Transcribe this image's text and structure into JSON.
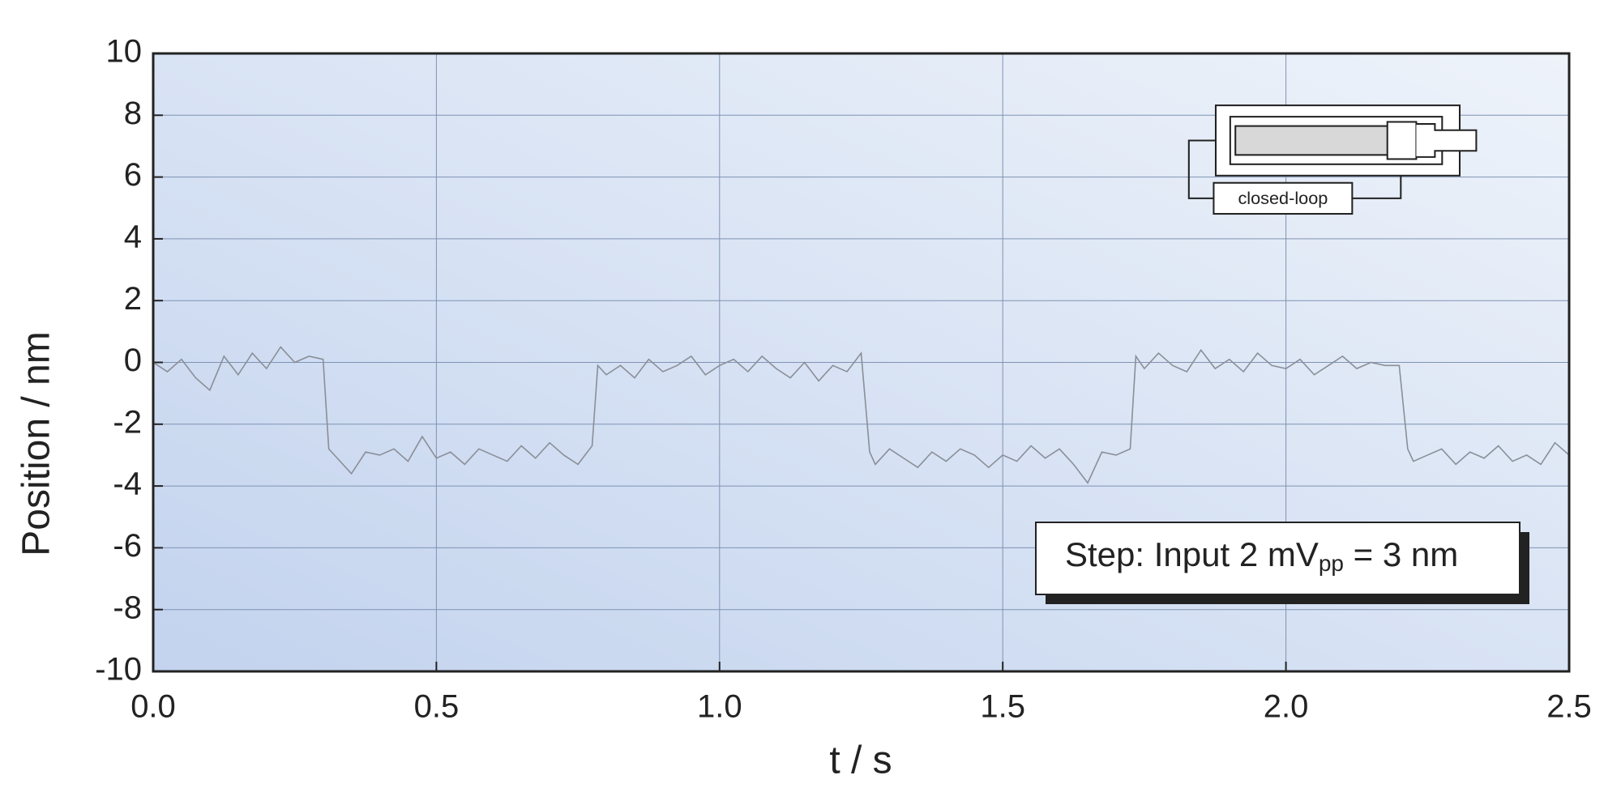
{
  "chart_data": {
    "type": "line",
    "x_label": "t / s",
    "y_label": "Position / nm",
    "annotation": {
      "text": "Step: Input 2 mV",
      "subscript": "pp",
      "suffix": " = 3 nm"
    },
    "inset_label": "closed-loop",
    "color": "#8a8f98",
    "grid": true,
    "xlim": [
      0,
      2.5
    ],
    "ylim": [
      -10,
      10
    ],
    "xticks": [
      {
        "value": 0,
        "label": "0.0"
      },
      0.5,
      {
        "value": 1,
        "label": "1.0"
      },
      1.5,
      {
        "value": 2,
        "label": "2.0"
      },
      2.5
    ],
    "yticks": [
      -10,
      -8,
      -6,
      -4,
      -2,
      0,
      2,
      4,
      6,
      8,
      10
    ],
    "x": [
      0,
      0.025,
      0.05,
      0.075,
      0.1,
      0.125,
      0.15,
      0.175,
      0.2,
      0.225,
      0.25,
      0.275,
      0.3,
      0.31,
      0.325,
      0.35,
      0.375,
      0.4,
      0.425,
      0.45,
      0.475,
      0.5,
      0.525,
      0.55,
      0.575,
      0.6,
      0.625,
      0.65,
      0.675,
      0.7,
      0.725,
      0.75,
      0.775,
      0.785,
      0.8,
      0.825,
      0.85,
      0.875,
      0.9,
      0.925,
      0.95,
      0.975,
      1.0,
      1.025,
      1.05,
      1.075,
      1.1,
      1.125,
      1.15,
      1.175,
      1.2,
      1.225,
      1.25,
      1.265,
      1.275,
      1.3,
      1.325,
      1.35,
      1.375,
      1.4,
      1.425,
      1.45,
      1.475,
      1.5,
      1.525,
      1.55,
      1.575,
      1.6,
      1.625,
      1.65,
      1.675,
      1.7,
      1.725,
      1.735,
      1.75,
      1.775,
      1.8,
      1.825,
      1.85,
      1.875,
      1.9,
      1.925,
      1.95,
      1.975,
      2.0,
      2.025,
      2.05,
      2.075,
      2.1,
      2.125,
      2.15,
      2.175,
      2.2,
      2.215,
      2.225,
      2.25,
      2.275,
      2.3,
      2.325,
      2.35,
      2.375,
      2.4,
      2.425,
      2.45,
      2.475,
      2.5
    ],
    "values": [
      0,
      -0.3,
      0.1,
      -0.5,
      -0.9,
      0.2,
      -0.4,
      0.3,
      -0.2,
      0.5,
      0,
      0.2,
      0.1,
      -2.8,
      -3.1,
      -3.6,
      -2.9,
      -3.0,
      -2.8,
      -3.2,
      -2.4,
      -3.1,
      -2.9,
      -3.3,
      -2.8,
      -3.0,
      -3.2,
      -2.7,
      -3.1,
      -2.6,
      -3.0,
      -3.3,
      -2.7,
      -0.1,
      -0.4,
      -0.1,
      -0.5,
      0.1,
      -0.3,
      -0.1,
      0.2,
      -0.4,
      -0.1,
      0.1,
      -0.3,
      0.2,
      -0.2,
      -0.5,
      0,
      -0.6,
      -0.1,
      -0.3,
      0.3,
      -2.9,
      -3.3,
      -2.8,
      -3.1,
      -3.4,
      -2.9,
      -3.2,
      -2.8,
      -3.0,
      -3.4,
      -3.0,
      -3.2,
      -2.7,
      -3.1,
      -2.8,
      -3.3,
      -3.9,
      -2.9,
      -3.0,
      -2.8,
      0.2,
      -0.2,
      0.3,
      -0.1,
      -0.3,
      0.4,
      -0.2,
      0.1,
      -0.3,
      0.3,
      -0.1,
      -0.2,
      0.1,
      -0.4,
      -0.1,
      0.2,
      -0.2,
      0,
      -0.1,
      -0.1,
      -2.8,
      -3.2,
      -3.0,
      -2.8,
      -3.3,
      -2.9,
      -3.1,
      -2.7,
      -3.2,
      -3.0,
      -3.3,
      -2.6,
      -3.0
    ]
  }
}
